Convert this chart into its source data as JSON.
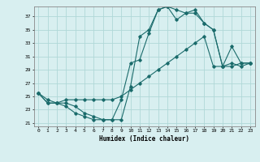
{
  "xlabel": "Humidex (Indice chaleur)",
  "ylabel": "",
  "bg_color": "#d8eff0",
  "grid_color": "#b0d8d8",
  "line_color": "#1a6b6b",
  "xlim": [
    -0.5,
    23.5
  ],
  "ylim": [
    20.5,
    38.5
  ],
  "yticks": [
    21,
    23,
    25,
    27,
    29,
    31,
    33,
    35,
    37
  ],
  "xticks": [
    0,
    1,
    2,
    3,
    4,
    5,
    6,
    7,
    8,
    9,
    10,
    11,
    12,
    13,
    14,
    15,
    16,
    17,
    18,
    19,
    20,
    21,
    22,
    23
  ],
  "series1_x": [
    0,
    1,
    2,
    3,
    4,
    5,
    6,
    7,
    8,
    9,
    10,
    11,
    12,
    13,
    14,
    15,
    16,
    17,
    18,
    19,
    20,
    21,
    22,
    23
  ],
  "series1_y": [
    25.5,
    24.0,
    24.0,
    23.5,
    22.5,
    22.0,
    21.5,
    21.5,
    21.5,
    24.5,
    30.0,
    30.5,
    34.5,
    38.0,
    38.5,
    38.0,
    37.5,
    38.0,
    36.0,
    35.0,
    29.5,
    29.5,
    30.0,
    30.0
  ],
  "series2_x": [
    0,
    1,
    2,
    3,
    4,
    5,
    6,
    7,
    8,
    9,
    10,
    11,
    12,
    13,
    14,
    15,
    16,
    17,
    18,
    19,
    20,
    21,
    22,
    23
  ],
  "series2_y": [
    25.5,
    24.5,
    24.0,
    24.5,
    24.5,
    24.5,
    24.5,
    24.5,
    24.5,
    25.0,
    26.0,
    27.0,
    28.0,
    29.0,
    30.0,
    31.0,
    32.0,
    33.0,
    34.0,
    29.5,
    29.5,
    30.0,
    29.5,
    30.0
  ],
  "series3_x": [
    0,
    1,
    2,
    3,
    4,
    5,
    6,
    7,
    8,
    9,
    10,
    11,
    12,
    13,
    14,
    15,
    16,
    17,
    18,
    19,
    20,
    21,
    22,
    23
  ],
  "series3_y": [
    25.5,
    24.0,
    24.0,
    24.0,
    23.5,
    22.5,
    22.0,
    21.5,
    21.5,
    21.5,
    26.5,
    34.0,
    35.0,
    38.0,
    38.5,
    36.5,
    37.5,
    37.5,
    36.0,
    35.0,
    29.5,
    32.5,
    30.0,
    30.0
  ]
}
